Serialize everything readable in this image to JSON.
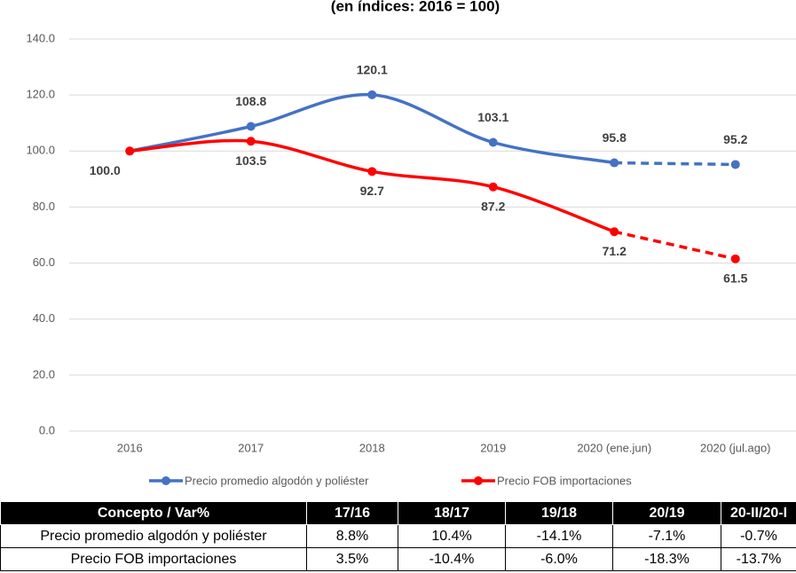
{
  "chart_data": {
    "type": "line",
    "title": "(en índices: 2016 = 100)",
    "categories": [
      "2016",
      "2017",
      "2018",
      "2019",
      "2020 (ene.jun)",
      "2020 (jul.ago)"
    ],
    "series": [
      {
        "name": "Precio promedio algodón y poliéster",
        "color": "#4472c4",
        "values": [
          100.0,
          108.8,
          120.1,
          103.1,
          95.8,
          95.2
        ],
        "value_labels": [
          null,
          "108.8",
          "120.1",
          "103.1",
          "95.8",
          "95.2"
        ]
      },
      {
        "name": "Precio FOB importaciones",
        "color": "#ff0000",
        "values": [
          100.0,
          103.5,
          92.7,
          87.2,
          71.2,
          61.5
        ],
        "value_labels": [
          "100.0",
          "103.5",
          "92.7",
          "87.2",
          "71.2",
          "61.5"
        ]
      }
    ],
    "ylim": [
      0,
      140
    ],
    "yticks": [
      {
        "value": 0,
        "label": "0.0"
      },
      {
        "value": 20,
        "label": "20.0"
      },
      {
        "value": 40,
        "label": "40.0"
      },
      {
        "value": 60,
        "label": "60.0"
      },
      {
        "value": 80,
        "label": "80.0"
      },
      {
        "value": 100,
        "label": "100.0"
      },
      {
        "value": 120,
        "label": "120.0"
      },
      {
        "value": 140,
        "label": "140.0"
      }
    ],
    "grid": true,
    "legend": "bottom",
    "dashed_from_index": 4,
    "smooth": true
  },
  "table": {
    "header": [
      "Concepto / Var%",
      "17/16",
      "18/17",
      "19/18",
      "20/19",
      "20-II/20-I"
    ],
    "rows": [
      [
        "Precio promedio algodón y poliéster",
        "8.8%",
        "10.4%",
        "-14.1%",
        "-7.1%",
        "-0.7%"
      ],
      [
        "Precio FOB importaciones",
        "3.5%",
        "-10.4%",
        "-6.0%",
        "-18.3%",
        "-13.7%"
      ]
    ]
  }
}
